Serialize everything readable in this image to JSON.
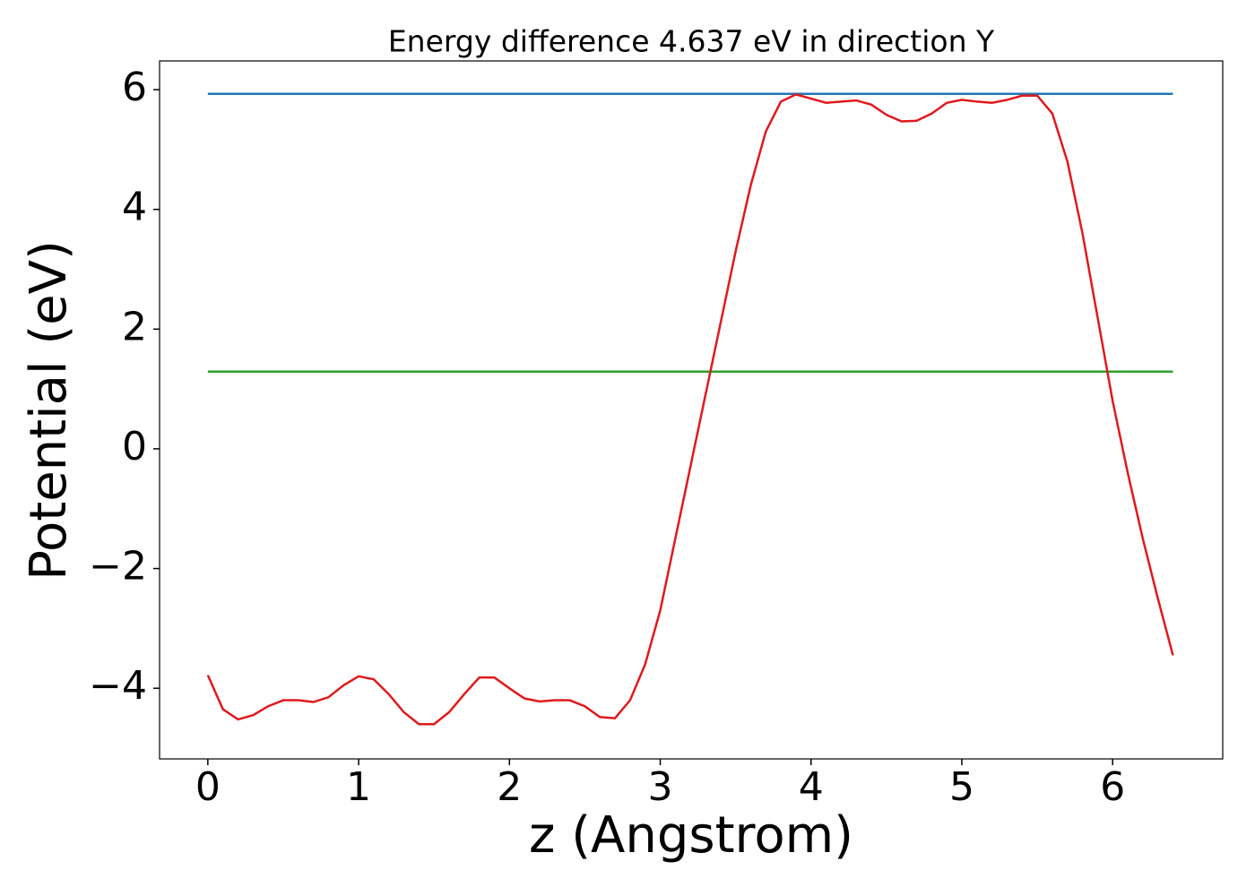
{
  "chart_data": {
    "type": "line",
    "title": "Energy difference 4.637 eV in direction Y",
    "xlabel": "z (Angstrom)",
    "ylabel": "Potential (eV)",
    "xlim": [
      -0.32,
      6.73
    ],
    "ylim": [
      -5.18,
      6.48
    ],
    "xticks": [
      0,
      1,
      2,
      3,
      4,
      5,
      6
    ],
    "yticks": [
      {
        "value": -4,
        "label": "−4"
      },
      {
        "value": -2,
        "label": "−2"
      },
      0,
      2,
      4,
      6
    ],
    "series": [
      {
        "color": "#1f77b4",
        "x": [
          0,
          6.4
        ],
        "values": [
          5.93,
          5.93
        ]
      },
      {
        "color": "#2ca02c",
        "x": [
          0,
          6.4
        ],
        "values": [
          1.29,
          1.29
        ]
      },
      {
        "color": "#e0191c",
        "x": [
          0,
          0.1,
          0.2,
          0.3,
          0.4,
          0.5,
          0.6,
          0.7,
          0.8,
          0.9,
          1.0,
          1.1,
          1.2,
          1.3,
          1.4,
          1.5,
          1.6,
          1.7,
          1.8,
          1.9,
          2.0,
          2.1,
          2.2,
          2.3,
          2.4,
          2.5,
          2.6,
          2.7,
          2.8,
          2.9,
          3.0,
          3.1,
          3.2,
          3.3,
          3.4,
          3.5,
          3.6,
          3.7,
          3.8,
          3.9,
          4.0,
          4.1,
          4.2,
          4.3,
          4.4,
          4.5,
          4.6,
          4.7,
          4.8,
          4.9,
          5.0,
          5.1,
          5.2,
          5.3,
          5.4,
          5.5,
          5.6,
          5.7,
          5.8,
          5.9,
          6.0,
          6.1,
          6.2,
          6.3,
          6.4
        ],
        "values": [
          -3.78,
          -4.35,
          -4.52,
          -4.45,
          -4.3,
          -4.2,
          -4.2,
          -4.23,
          -4.15,
          -3.95,
          -3.8,
          -3.85,
          -4.1,
          -4.4,
          -4.6,
          -4.6,
          -4.4,
          -4.1,
          -3.82,
          -3.82,
          -4.0,
          -4.17,
          -4.22,
          -4.2,
          -4.2,
          -4.3,
          -4.48,
          -4.5,
          -4.2,
          -3.6,
          -2.7,
          -1.5,
          -0.3,
          0.9,
          2.1,
          3.3,
          4.4,
          5.3,
          5.8,
          5.92,
          5.85,
          5.78,
          5.8,
          5.82,
          5.75,
          5.58,
          5.47,
          5.48,
          5.6,
          5.78,
          5.83,
          5.8,
          5.78,
          5.83,
          5.9,
          5.9,
          5.6,
          4.8,
          3.6,
          2.2,
          0.8,
          -0.4,
          -1.5,
          -2.5,
          -3.45
        ]
      }
    ]
  }
}
